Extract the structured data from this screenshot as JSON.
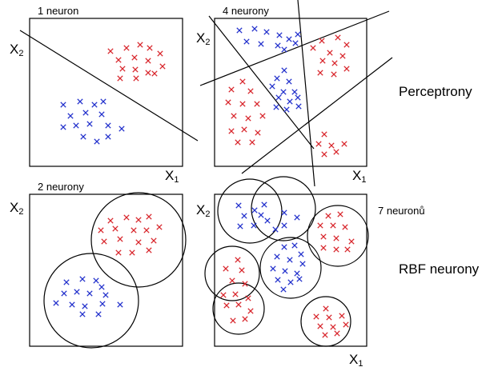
{
  "colors": {
    "blue": "#2230cc",
    "red": "#d8262c",
    "line": "#000000"
  },
  "panels": [
    {
      "id": "p1",
      "title": "1 neuron",
      "x_axis": "X",
      "x_sub": "1",
      "y_axis": "X",
      "y_sub": "2"
    },
    {
      "id": "p2",
      "title": "4 neurony",
      "x_axis": "X",
      "x_sub": "1",
      "y_axis": "X",
      "y_sub": "2"
    },
    {
      "id": "p3",
      "title": "2 neurony",
      "x_axis": "X",
      "x_sub": "1",
      "y_axis": "X",
      "y_sub": "2"
    },
    {
      "id": "p4",
      "title": "7 neuronů",
      "x_axis": "X",
      "x_sub": "1",
      "y_axis": "X",
      "y_sub": "2"
    }
  ],
  "side_labels": {
    "top": "Perceptrony",
    "bottom": "RBF neurony"
  }
}
